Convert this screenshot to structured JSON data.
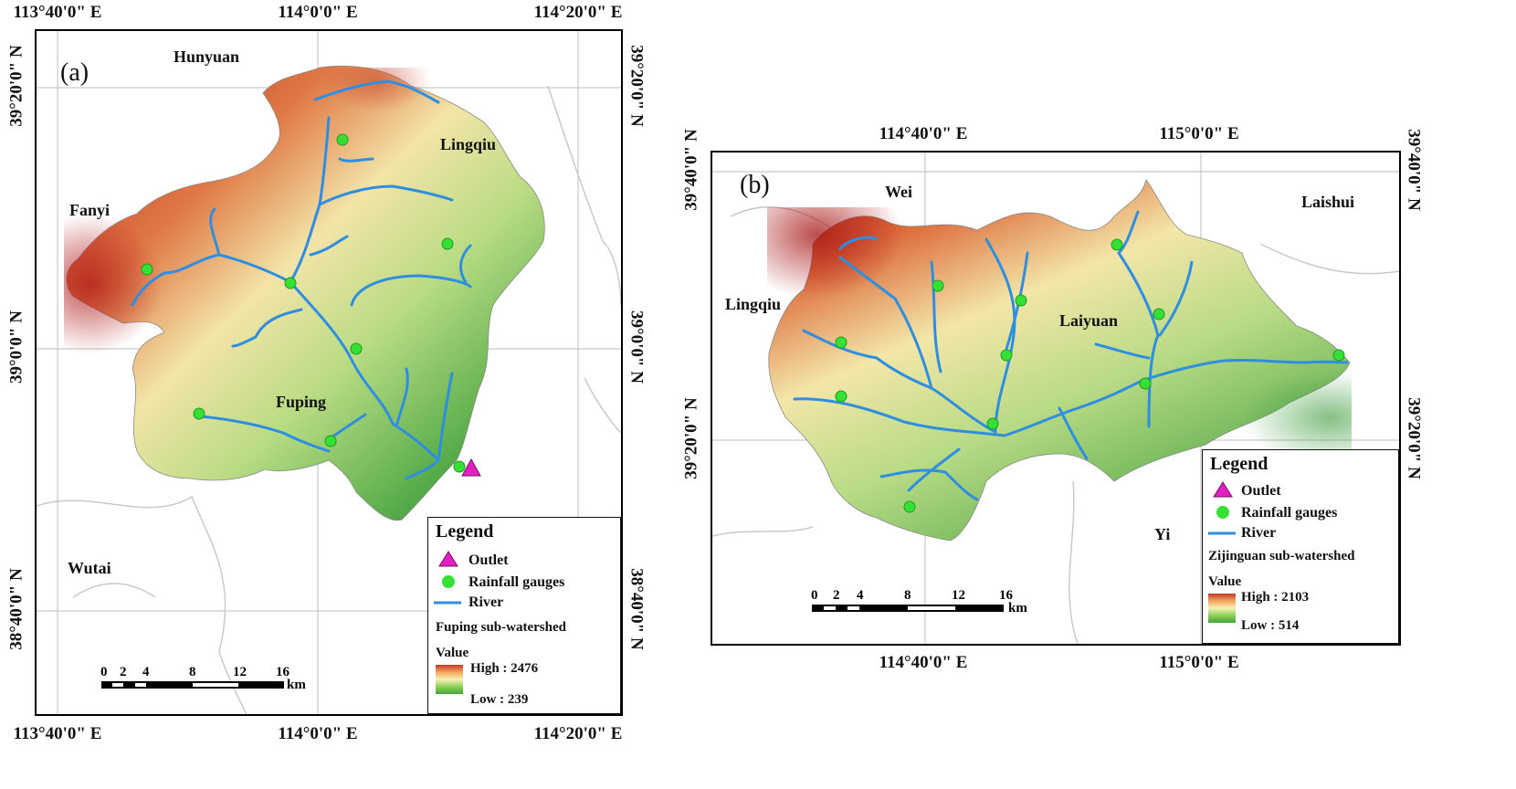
{
  "map_a": {
    "panel_label": "(a)",
    "top_lon_labels": [
      "113°40'0\" E",
      "114°0'0\" E",
      "114°20'0\" E"
    ],
    "bottom_lon_labels": [
      "113°40'0\" E",
      "114°0'0\" E",
      "114°20'0\" E"
    ],
    "left_lat_labels": [
      "39°20'0\" N",
      "39°0'0\" N",
      "38°40'0\" N"
    ],
    "right_lat_labels": [
      "39°20'0\" N",
      "39°0'0\" N",
      "38°40'0\" N"
    ],
    "places": [
      "Hunyuan",
      "Lingqiu",
      "Fanyi",
      "Fuping",
      "Wutai"
    ],
    "legend": {
      "title": "Legend",
      "outlet": "Outlet",
      "gauges": "Rainfall gauges",
      "river": "River",
      "layer": "Fuping sub-watershed",
      "value": "Value",
      "high": "High : 2476",
      "low": "Low : 239"
    },
    "scale_ticks": [
      "0",
      "2",
      "4",
      "8",
      "12",
      "16"
    ],
    "scale_unit": "km"
  },
  "map_b": {
    "panel_label": "(b)",
    "top_lon_labels": [
      "114°40'0\" E",
      "115°0'0\" E"
    ],
    "bottom_lon_labels": [
      "114°40'0\" E",
      "115°0'0\" E"
    ],
    "left_lat_labels": [
      "39°40'0\" N",
      "39°20'0\" N"
    ],
    "right_lat_labels": [
      "39°40'0\" N",
      "39°20'0\" N"
    ],
    "places": [
      "Wei",
      "Laishui",
      "Lingqiu",
      "Laiyuan",
      "Yi"
    ],
    "legend": {
      "title": "Legend",
      "outlet": "Outlet",
      "gauges": "Rainfall gauges",
      "river": "River",
      "layer": "Zijinguan sub-watershed",
      "value": "Value",
      "high": "High : 2103",
      "low": "Low : 514"
    },
    "scale_ticks": [
      "0",
      "2",
      "4",
      "8",
      "12",
      "16"
    ],
    "scale_unit": "km"
  },
  "colors": {
    "high_elev": "#b81e1e",
    "mid_elev": "#f3eeb0",
    "low_elev": "#3b9a3b",
    "river": "#2f8ee0",
    "gauge": "#33e033",
    "outlet": "#e020c0"
  }
}
